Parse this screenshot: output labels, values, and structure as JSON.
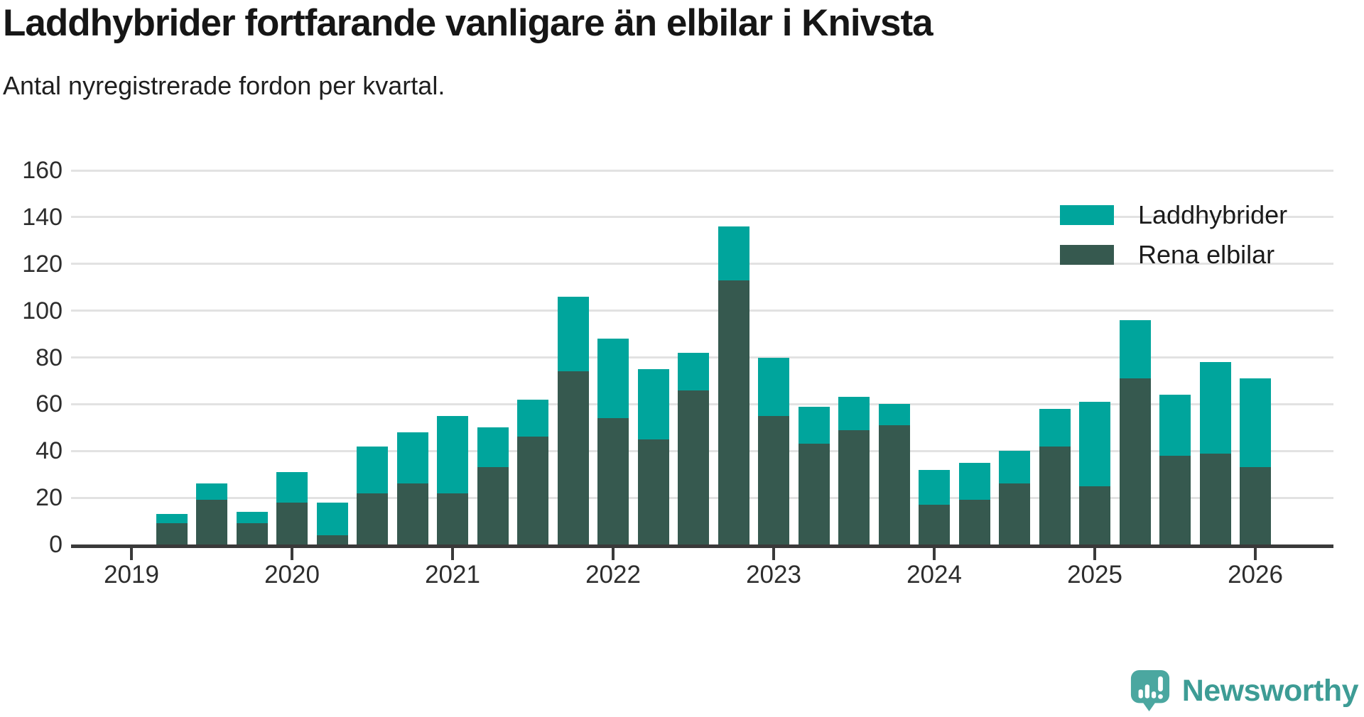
{
  "header": {
    "title": "Laddhybrider fortfarande vanligare än elbilar i Knivsta",
    "subtitle": "Antal nyregistrerade fordon per kvartal."
  },
  "brand": {
    "name": "Newsworthy"
  },
  "colors": {
    "laddhybrider": "#00a59c",
    "rena_elbilar": "#36594f",
    "axis": "#3a3a3a",
    "grid": "#e2e2e2",
    "brand_teal": "#3d9c95",
    "logo_bubble": "#4ba7a0"
  },
  "chart_data": {
    "type": "bar",
    "stacked": true,
    "title": "Laddhybrider fortfarande vanligare än elbilar i Knivsta",
    "subtitle": "Antal nyregistrerade fordon per kvartal.",
    "categories": [
      "2019-Q2",
      "2019-Q3",
      "2019-Q4",
      "2020-Q1",
      "2020-Q2",
      "2020-Q3",
      "2020-Q4",
      "2021-Q1",
      "2021-Q2",
      "2021-Q3",
      "2021-Q4",
      "2022-Q1",
      "2022-Q2",
      "2022-Q3",
      "2022-Q4",
      "2023-Q1",
      "2023-Q2",
      "2023-Q3",
      "2023-Q4",
      "2024-Q1",
      "2024-Q2",
      "2024-Q3",
      "2024-Q4",
      "2025-Q1",
      "2025-Q2",
      "2025-Q3",
      "2025-Q4",
      "2026-Q1"
    ],
    "series": [
      {
        "name": "Laddhybrider",
        "color": "#00a59c",
        "values": [
          4,
          7,
          5,
          13,
          14,
          20,
          22,
          33,
          17,
          16,
          32,
          34,
          30,
          16,
          23,
          25,
          16,
          14,
          9,
          15,
          16,
          14,
          16,
          36,
          25,
          26,
          39,
          38
        ]
      },
      {
        "name": "Rena elbilar",
        "color": "#36594f",
        "values": [
          9,
          19,
          9,
          18,
          4,
          22,
          26,
          22,
          33,
          46,
          74,
          54,
          45,
          66,
          113,
          55,
          43,
          49,
          51,
          17,
          19,
          26,
          42,
          25,
          71,
          38,
          39,
          33
        ]
      }
    ],
    "totals": [
      13,
      26,
      14,
      31,
      18,
      42,
      48,
      55,
      50,
      62,
      106,
      88,
      75,
      82,
      136,
      80,
      59,
      63,
      60,
      32,
      35,
      40,
      58,
      61,
      96,
      64,
      78,
      71
    ],
    "x_ticks": [
      "2019",
      "2020",
      "2021",
      "2022",
      "2023",
      "2024",
      "2025",
      "2026"
    ],
    "y_ticks": [
      "0",
      "20",
      "40",
      "60",
      "80",
      "100",
      "120",
      "140",
      "160"
    ],
    "ylim": [
      0,
      160
    ],
    "grid": "horizontal",
    "legend_position": "top-right"
  }
}
